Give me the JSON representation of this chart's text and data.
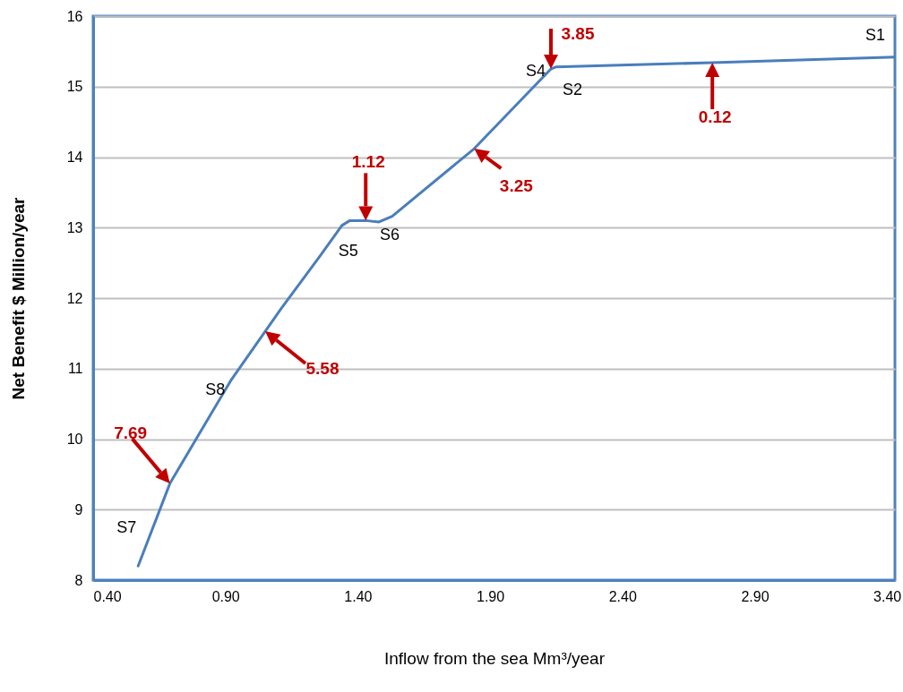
{
  "chart_data": {
    "type": "line",
    "xlabel": "Inflow from the sea Mm³/year",
    "ylabel": "Net Benefit $ Million/year",
    "x": [
      0.57,
      0.69,
      0.8,
      0.92,
      1.11,
      1.26,
      1.34,
      1.37,
      1.43,
      1.48,
      1.53,
      1.84,
      2.13,
      2.15,
      2.74,
      3.43
    ],
    "series": [
      {
        "color": "#4a7ebb",
        "values": [
          8.2,
          9.37,
          10.07,
          10.83,
          11.85,
          12.61,
          13.03,
          13.1,
          13.1,
          13.08,
          13.16,
          14.12,
          15.25,
          15.28,
          15.34,
          15.42
        ]
      }
    ],
    "xlim": [
      0.4,
      3.43
    ],
    "xticks": [
      {
        "value": 0.4,
        "label": "0.40"
      },
      {
        "value": 0.9,
        "label": "0.90"
      },
      {
        "value": 1.4,
        "label": "1.40"
      },
      {
        "value": 1.9,
        "label": "1.90"
      },
      {
        "value": 2.4,
        "label": "2.40"
      },
      {
        "value": 2.9,
        "label": "2.90"
      },
      {
        "value": 3.4,
        "label": "3.40"
      }
    ],
    "ylim": [
      8,
      16
    ],
    "yticks": [
      8,
      9,
      10,
      11,
      12,
      13,
      14,
      15,
      16
    ],
    "grid": "y",
    "marker": "none",
    "line_style": "solid",
    "annotations": [
      {
        "text": "S7",
        "x": 0.57,
        "y": 8.2
      },
      {
        "text": "S8",
        "x": 0.8,
        "y": 10.07
      },
      {
        "text": "S5",
        "x": 1.34,
        "y": 13.03
      },
      {
        "text": "S6",
        "x": 1.48,
        "y": 13.08
      },
      {
        "text": "S4",
        "x": 2.13,
        "y": 15.25
      },
      {
        "text": "S2",
        "x": 2.15,
        "y": 15.28
      },
      {
        "text": "S1",
        "x": 3.43,
        "y": 15.42
      },
      {
        "text": "7.69",
        "x": 0.69,
        "y": 9.37
      },
      {
        "text": "5.58",
        "x": 1.05,
        "y": 11.53
      },
      {
        "text": "1.12",
        "x": 1.43,
        "y": 13.1
      },
      {
        "text": "3.25",
        "x": 1.84,
        "y": 14.12
      },
      {
        "text": "3.85",
        "x": 2.13,
        "y": 15.25
      },
      {
        "text": "0.12",
        "x": 2.74,
        "y": 15.34
      }
    ]
  }
}
